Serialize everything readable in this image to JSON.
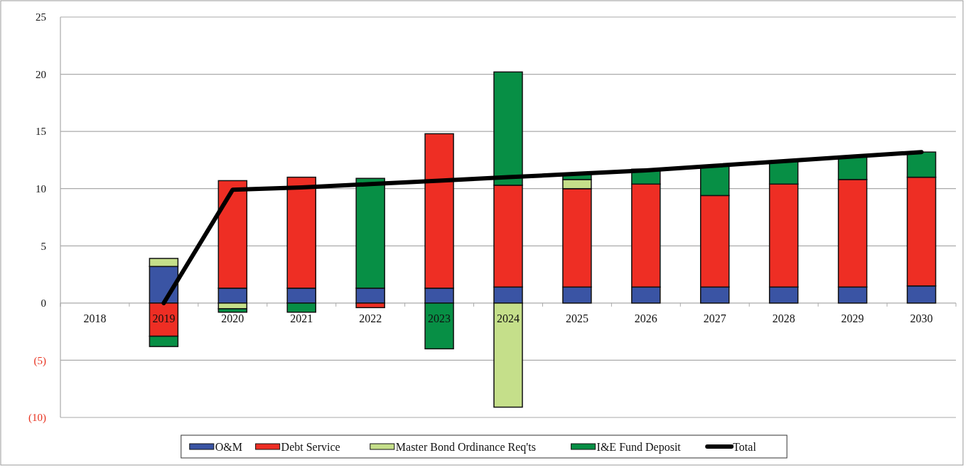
{
  "chart_data": {
    "type": "bar",
    "stacked": true,
    "categories": [
      "2018",
      "2019",
      "2020",
      "2021",
      "2022",
      "2023",
      "2024",
      "2025",
      "2026",
      "2027",
      "2028",
      "2029",
      "2030"
    ],
    "series": [
      {
        "name": "O&M",
        "color": "#3a54a4",
        "values": [
          null,
          3.2,
          1.3,
          1.3,
          1.3,
          1.3,
          1.4,
          1.4,
          1.4,
          1.4,
          1.4,
          1.4,
          1.5
        ]
      },
      {
        "name": "Debt Service",
        "color": "#ee2e24",
        "values": [
          null,
          -2.9,
          9.4,
          9.7,
          -0.4,
          13.5,
          8.9,
          8.6,
          9.0,
          8.0,
          9.0,
          9.4,
          9.5
        ]
      },
      {
        "name": "Master Bond Ordinance Req'ts",
        "color": "#c5df8a",
        "values": [
          null,
          0.7,
          -0.5,
          null,
          null,
          null,
          -9.1,
          0.8,
          null,
          null,
          null,
          null,
          null
        ]
      },
      {
        "name": "I&E Fund Deposit",
        "color": "#078f45",
        "values": [
          null,
          -0.9,
          -0.3,
          -0.8,
          9.6,
          -4.0,
          9.9,
          0.5,
          1.3,
          2.6,
          2.0,
          2.0,
          2.2
        ]
      },
      {
        "name": "Total",
        "type": "line",
        "color": "#000000",
        "values": [
          null,
          0,
          9.9,
          10.1,
          10.4,
          10.7,
          11.0,
          11.3,
          11.6,
          12.0,
          12.4,
          12.8,
          13.2
        ]
      }
    ],
    "ylim": [
      -10,
      25
    ],
    "yticks": [
      {
        "value": -10,
        "label": "(10)"
      },
      {
        "value": -5,
        "label": "(5)"
      },
      0,
      5,
      10,
      15,
      20,
      25
    ],
    "grid": "y",
    "legend": "bottom"
  }
}
